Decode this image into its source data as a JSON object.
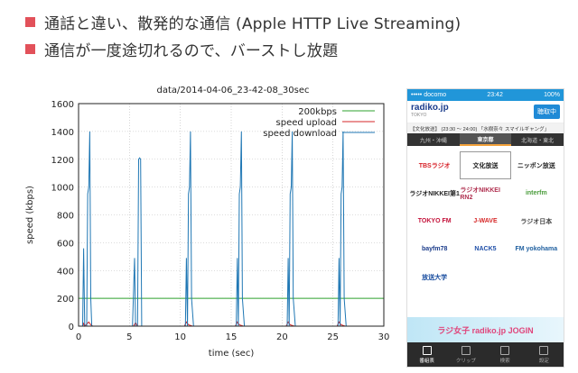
{
  "slide": {
    "bullets": [
      "通話と違い、散発的な通信 (Apple HTTP Live Streaming)",
      "通信が一度途切れるので、バーストし放題"
    ],
    "accent_color": "#e2515a"
  },
  "chart_data": {
    "type": "line",
    "title": "data/2014-04-06_23-42-08_30sec",
    "xlabel": "time (sec)",
    "ylabel": "speed (kbps)",
    "xlim": [
      0,
      30
    ],
    "ylim": [
      0,
      1600
    ],
    "xticks": [
      0,
      5,
      10,
      15,
      20,
      25,
      30
    ],
    "yticks": [
      0,
      200,
      400,
      600,
      800,
      1000,
      1200,
      1400,
      1600
    ],
    "grid": true,
    "legend_position": "top-right",
    "series": [
      {
        "name": "200kbps",
        "color": "#2ca02c",
        "x": [
          0,
          30
        ],
        "y": [
          200,
          200
        ]
      },
      {
        "name": "speed upload",
        "color": "#d62728",
        "x": [
          0,
          0.4,
          0.5,
          0.6,
          1.0,
          1.2,
          1.4,
          5.4,
          5.6,
          5.8,
          6.2,
          10.4,
          10.6,
          10.8,
          11.2,
          15.4,
          15.6,
          15.8,
          16.2,
          20.4,
          20.6,
          20.8,
          21.2,
          25.4,
          25.6,
          25.8,
          26.2,
          30
        ],
        "y": [
          0,
          0,
          20,
          0,
          30,
          10,
          0,
          0,
          25,
          0,
          0,
          0,
          30,
          10,
          0,
          0,
          30,
          10,
          0,
          0,
          30,
          10,
          0,
          0,
          30,
          10,
          0,
          0
        ]
      },
      {
        "name": "speed download",
        "color": "#1f77b4",
        "x": [
          0,
          0.4,
          0.5,
          0.6,
          0.8,
          0.9,
          1.0,
          1.1,
          1.2,
          1.3,
          1.5,
          5.3,
          5.5,
          5.6,
          5.8,
          5.9,
          6.0,
          6.1,
          6.2,
          6.3,
          6.5,
          10.5,
          10.6,
          10.7,
          10.8,
          10.9,
          11.0,
          11.1,
          11.3,
          11.5,
          15.5,
          15.6,
          15.7,
          15.8,
          15.9,
          16.0,
          16.1,
          16.3,
          16.5,
          20.5,
          20.6,
          20.7,
          20.8,
          20.9,
          21.0,
          21.1,
          21.3,
          21.5,
          25.5,
          25.6,
          25.7,
          25.8,
          25.9,
          26.0,
          26.1,
          26.3,
          26.5,
          30
        ],
        "y": [
          0,
          0,
          560,
          0,
          0,
          950,
          1000,
          1400,
          200,
          0,
          0,
          0,
          490,
          0,
          0,
          1200,
          1210,
          1200,
          0,
          0,
          0,
          0,
          490,
          0,
          950,
          1000,
          1400,
          200,
          0,
          0,
          0,
          490,
          0,
          950,
          1000,
          1400,
          200,
          0,
          0,
          0,
          490,
          0,
          950,
          1000,
          1400,
          200,
          0,
          0,
          0,
          490,
          0,
          950,
          1000,
          1400,
          200,
          0,
          0,
          0
        ]
      }
    ]
  },
  "phone": {
    "status": {
      "carrier": "••••• docomo",
      "time": "23:42",
      "battery": "100%"
    },
    "logo": "radiko.jp",
    "logo_sub": "TOKYO",
    "listen_button": "聴取中",
    "now_playing": "【文化放送】 (23:30 〜 24:00) 「水樹奈々 スマイルギャング」",
    "regions": [
      "九州・沖縄",
      "東京都",
      "北海道・東北"
    ],
    "stations": [
      {
        "label": "TBSラジオ",
        "color": "#d61f26"
      },
      {
        "label": "文化放送",
        "color": "#1a1a1a",
        "selected": true
      },
      {
        "label": "ニッポン放送",
        "color": "#222"
      },
      {
        "label": "ラジオNIKKEI第1",
        "color": "#222"
      },
      {
        "label": "ラジオNIKKEI RN2",
        "color": "#b03050"
      },
      {
        "label": "interfm",
        "color": "#4a9c3b"
      },
      {
        "label": "TOKYO FM",
        "color": "#c4123a"
      },
      {
        "label": "J-WAVE",
        "color": "#d62828"
      },
      {
        "label": "ラジオ日本",
        "color": "#444"
      },
      {
        "label": "bayfm78",
        "color": "#1a3b8a"
      },
      {
        "label": "NACK5",
        "color": "#1f4fa8"
      },
      {
        "label": "FM yokohama",
        "color": "#2060a0"
      },
      {
        "label": "放送大学",
        "color": "#1a4ea0"
      }
    ],
    "banner": "ラジ女子 radiko.jp JOGIN",
    "tabs": [
      "番組表",
      "クリップ",
      "検索",
      "設定"
    ]
  }
}
